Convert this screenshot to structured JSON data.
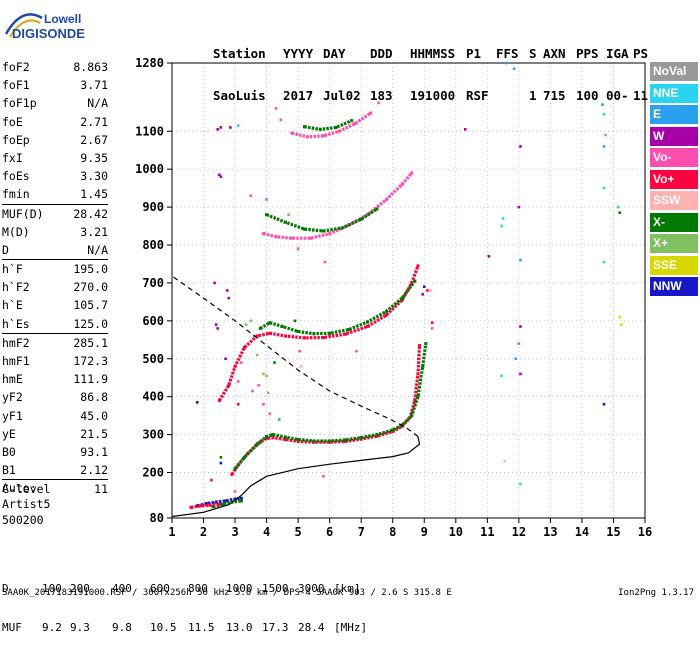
{
  "logo": {
    "line1": "Lowell",
    "line2": "DIGISONDE"
  },
  "header": {
    "labels": [
      "Station",
      "YYYY",
      "DAY",
      "DDD",
      "HHMMSS",
      "P1",
      "FFS",
      "S",
      "AXN",
      "PPS",
      "IGA",
      "PS"
    ],
    "values": [
      "SaoLuis",
      "2017",
      "Jul02",
      "183",
      "191000",
      "RSF",
      "",
      "1",
      "715",
      "100",
      "00-",
      "11"
    ]
  },
  "params": [
    {
      "name": "foF2",
      "value": "8.863",
      "sep": false
    },
    {
      "name": "foF1",
      "value": "3.71",
      "sep": false
    },
    {
      "name": "foF1p",
      "value": "N/A",
      "sep": false
    },
    {
      "name": "foE",
      "value": "2.71",
      "sep": false
    },
    {
      "name": "foEp",
      "value": "2.67",
      "sep": false
    },
    {
      "name": "fxI",
      "value": "9.35",
      "sep": false
    },
    {
      "name": "foEs",
      "value": "3.30",
      "sep": false
    },
    {
      "name": "fmin",
      "value": "1.45",
      "sep": false
    },
    {
      "name": "MUF(D)",
      "value": "28.42",
      "sep": true
    },
    {
      "name": "M(D)",
      "value": "3.21",
      "sep": false
    },
    {
      "name": "D",
      "value": "N/A",
      "sep": false
    },
    {
      "name": "h`F",
      "value": "195.0",
      "sep": true
    },
    {
      "name": "h`F2",
      "value": "270.0",
      "sep": false
    },
    {
      "name": "h`E",
      "value": "105.7",
      "sep": false
    },
    {
      "name": "h`Es",
      "value": "125.0",
      "sep": false
    },
    {
      "name": "hmF2",
      "value": "285.1",
      "sep": true
    },
    {
      "name": "hmF1",
      "value": "172.3",
      "sep": false
    },
    {
      "name": "hmE",
      "value": "111.9",
      "sep": false
    },
    {
      "name": "yF2",
      "value": "86.8",
      "sep": false
    },
    {
      "name": "yF1",
      "value": "45.0",
      "sep": false
    },
    {
      "name": "yE",
      "value": "21.5",
      "sep": false
    },
    {
      "name": "B0",
      "value": "93.1",
      "sep": false
    },
    {
      "name": "B1",
      "value": "2.12",
      "sep": false
    },
    {
      "name": "C-level",
      "value": "11",
      "sep": true
    }
  ],
  "auto": {
    "line1": "Auto:",
    "line2": "Artist5",
    "line3": "500200"
  },
  "legend": [
    {
      "label": "NoVal",
      "color": "#9a9a9a"
    },
    {
      "label": "NNE",
      "color": "#2ad4f0"
    },
    {
      "label": "E",
      "color": "#2aa0ee"
    },
    {
      "label": "W",
      "color": "#a800a8"
    },
    {
      "label": "Vo-",
      "color": "#ff4db0"
    },
    {
      "label": "Vo+",
      "color": "#ff0040"
    },
    {
      "label": "SSW",
      "color": "#ffb0b0"
    },
    {
      "label": "X-",
      "color": "#007a00"
    },
    {
      "label": "X+",
      "color": "#80c060"
    },
    {
      "label": "SSE",
      "color": "#d8d800"
    },
    {
      "label": "NNW",
      "color": "#1818c8"
    }
  ],
  "bottom": {
    "d_label": "D",
    "d_values": [
      "100",
      "200",
      "400",
      "600",
      "800",
      "1000",
      "1500",
      "3000"
    ],
    "d_unit": "[km]",
    "muf_label": "MUF",
    "muf_values": [
      "9.2",
      "9.3",
      "9.8",
      "10.5",
      "11.5",
      "13.0",
      "17.3",
      "28.4"
    ],
    "muf_unit": "[MHz]"
  },
  "footer": {
    "text": "SAA0K_2017183191000.RSF / 300fx256h 50 kHz 5.0 km / DPS-4 SAA0K 903 / 2.6 S 315.8 E",
    "version": "Ion2Png 1.3.17"
  },
  "chart_data": {
    "type": "scatter",
    "x_ticks": [
      1,
      2,
      3,
      4,
      5,
      6,
      7,
      8,
      9,
      10,
      11,
      12,
      13,
      14,
      15,
      16
    ],
    "y_ticks": [
      80,
      200,
      300,
      400,
      500,
      600,
      700,
      800,
      900,
      1000,
      1100,
      1280
    ],
    "xlim": [
      1,
      16
    ],
    "ylim": [
      80,
      1280
    ],
    "grid": "dotted",
    "profile_curve": [
      [
        1.0,
        84
      ],
      [
        2.0,
        95
      ],
      [
        2.8,
        115
      ],
      [
        3.2,
        140
      ],
      [
        3.5,
        165
      ],
      [
        4.0,
        190
      ],
      [
        5.0,
        210
      ],
      [
        6.0,
        222
      ],
      [
        7.0,
        232
      ],
      [
        8.0,
        242
      ],
      [
        8.5,
        252
      ],
      [
        8.85,
        275
      ],
      [
        8.8,
        295
      ],
      [
        8.4,
        320
      ],
      [
        7.8,
        345
      ],
      [
        7.0,
        375
      ],
      [
        6.0,
        415
      ],
      [
        5.0,
        470
      ],
      [
        4.0,
        535
      ],
      [
        3.0,
        600
      ],
      [
        2.0,
        660
      ],
      [
        1.0,
        718
      ]
    ],
    "profile_dashed_from_index": 12,
    "traces": [
      {
        "name": "o-trace-F",
        "color": "#ff0040",
        "points": [
          [
            2.9,
            195
          ],
          [
            3.1,
            220
          ],
          [
            3.4,
            250
          ],
          [
            3.8,
            280
          ],
          [
            4.0,
            290
          ],
          [
            4.2,
            292
          ],
          [
            4.6,
            287
          ],
          [
            5.0,
            282
          ],
          [
            5.5,
            280
          ],
          [
            6.0,
            280
          ],
          [
            6.5,
            282
          ],
          [
            7.0,
            288
          ],
          [
            7.5,
            296
          ],
          [
            8.0,
            308
          ],
          [
            8.3,
            322
          ],
          [
            8.55,
            345
          ],
          [
            8.7,
            390
          ],
          [
            8.8,
            460
          ],
          [
            8.85,
            535
          ]
        ]
      },
      {
        "name": "x-trace-F",
        "color": "#007a00",
        "points": [
          [
            3.0,
            210
          ],
          [
            3.3,
            240
          ],
          [
            3.7,
            275
          ],
          [
            4.0,
            295
          ],
          [
            4.2,
            300
          ],
          [
            4.6,
            293
          ],
          [
            5.0,
            287
          ],
          [
            5.5,
            283
          ],
          [
            6.0,
            283
          ],
          [
            6.5,
            286
          ],
          [
            7.0,
            292
          ],
          [
            7.5,
            300
          ],
          [
            8.0,
            312
          ],
          [
            8.3,
            325
          ],
          [
            8.6,
            350
          ],
          [
            8.8,
            400
          ],
          [
            8.95,
            480
          ],
          [
            9.05,
            540
          ]
        ]
      },
      {
        "name": "o-trace-2F",
        "color": "#ff0040",
        "points": [
          [
            2.5,
            390
          ],
          [
            2.8,
            430
          ],
          [
            3.0,
            480
          ],
          [
            3.3,
            530
          ],
          [
            3.7,
            560
          ],
          [
            4.1,
            567
          ],
          [
            4.6,
            560
          ],
          [
            5.2,
            555
          ],
          [
            5.8,
            556
          ],
          [
            6.5,
            565
          ],
          [
            7.2,
            585
          ],
          [
            7.8,
            615
          ],
          [
            8.3,
            655
          ],
          [
            8.6,
            700
          ],
          [
            8.8,
            745
          ]
        ]
      },
      {
        "name": "x-trace-2F",
        "color": "#007a00",
        "points": [
          [
            3.8,
            580
          ],
          [
            4.1,
            595
          ],
          [
            4.5,
            585
          ],
          [
            5.0,
            572
          ],
          [
            5.5,
            566
          ],
          [
            6.0,
            567
          ],
          [
            6.6,
            577
          ],
          [
            7.2,
            597
          ],
          [
            7.8,
            625
          ],
          [
            8.3,
            660
          ],
          [
            8.7,
            705
          ]
        ]
      },
      {
        "name": "o-trace-3F",
        "color": "#ff4db0",
        "points": [
          [
            3.9,
            830
          ],
          [
            4.3,
            822
          ],
          [
            4.8,
            818
          ],
          [
            5.4,
            818
          ],
          [
            6.0,
            830
          ],
          [
            6.6,
            852
          ],
          [
            7.2,
            880
          ],
          [
            7.8,
            920
          ],
          [
            8.3,
            960
          ],
          [
            8.6,
            990
          ]
        ]
      },
      {
        "name": "x-trace-3F",
        "color": "#007a00",
        "points": [
          [
            4.0,
            880
          ],
          [
            4.6,
            860
          ],
          [
            5.2,
            842
          ],
          [
            5.8,
            837
          ],
          [
            6.4,
            845
          ],
          [
            7.0,
            868
          ],
          [
            7.5,
            895
          ]
        ]
      },
      {
        "name": "o-trace-4F",
        "color": "#ff4db0",
        "points": [
          [
            4.8,
            1095
          ],
          [
            5.3,
            1085
          ],
          [
            5.8,
            1088
          ],
          [
            6.3,
            1100
          ],
          [
            6.8,
            1120
          ],
          [
            7.3,
            1148
          ]
        ]
      },
      {
        "name": "x-trace-4F",
        "color": "#007a00",
        "points": [
          [
            5.2,
            1112
          ],
          [
            5.7,
            1105
          ],
          [
            6.2,
            1110
          ],
          [
            6.7,
            1128
          ]
        ]
      },
      {
        "name": "E-trace",
        "color": "#1818c8",
        "points": [
          [
            1.8,
            112
          ],
          [
            2.1,
            118
          ],
          [
            2.4,
            122
          ],
          [
            2.7,
            125
          ],
          [
            3.0,
            130
          ],
          [
            3.2,
            132
          ]
        ]
      },
      {
        "name": "E-trace-x",
        "color": "#007a00",
        "points": [
          [
            2.3,
            110
          ],
          [
            2.6,
            116
          ],
          [
            2.9,
            122
          ],
          [
            3.2,
            125
          ]
        ]
      },
      {
        "name": "E-trace-o",
        "color": "#ff0040",
        "points": [
          [
            1.6,
            108
          ],
          [
            1.9,
            112
          ],
          [
            2.2,
            114
          ],
          [
            2.5,
            116
          ]
        ]
      }
    ],
    "scatter_points": [
      {
        "x": 11.6,
        "y": 1280,
        "color": "#2aa0ee"
      },
      {
        "x": 11.85,
        "y": 1265,
        "color": "#2aa0ee"
      },
      {
        "x": 14.65,
        "y": 1170,
        "color": "#2aa0ee"
      },
      {
        "x": 14.7,
        "y": 1145,
        "color": "#2ad4f0"
      },
      {
        "x": 14.75,
        "y": 1090,
        "color": "#80c060"
      },
      {
        "x": 14.7,
        "y": 1060,
        "color": "#2aa0ee"
      },
      {
        "x": 12.05,
        "y": 1060,
        "color": "#a800a8"
      },
      {
        "x": 10.3,
        "y": 1105,
        "color": "#a800a8"
      },
      {
        "x": 14.7,
        "y": 950,
        "color": "#2ad4f0"
      },
      {
        "x": 15.15,
        "y": 900,
        "color": "#2ad4f0"
      },
      {
        "x": 15.2,
        "y": 885,
        "color": "#007a00"
      },
      {
        "x": 11.5,
        "y": 870,
        "color": "#2ad4f0"
      },
      {
        "x": 11.45,
        "y": 850,
        "color": "#2ad4f0"
      },
      {
        "x": 12.0,
        "y": 900,
        "color": "#a800a8"
      },
      {
        "x": 12.05,
        "y": 760,
        "color": "#2aa0ee"
      },
      {
        "x": 11.05,
        "y": 770,
        "color": "#a800a8"
      },
      {
        "x": 14.7,
        "y": 755,
        "color": "#2ad4f0"
      },
      {
        "x": 15.2,
        "y": 610,
        "color": "#d8d800"
      },
      {
        "x": 15.25,
        "y": 590,
        "color": "#d8d800"
      },
      {
        "x": 12.05,
        "y": 585,
        "color": "#a800a8"
      },
      {
        "x": 12.0,
        "y": 540,
        "color": "#ff4db0"
      },
      {
        "x": 11.9,
        "y": 500,
        "color": "#2aa0ee"
      },
      {
        "x": 12.05,
        "y": 460,
        "color": "#a800a8"
      },
      {
        "x": 11.45,
        "y": 455,
        "color": "#2ad4f0"
      },
      {
        "x": 14.7,
        "y": 380,
        "color": "#1818c8"
      },
      {
        "x": 11.55,
        "y": 230,
        "color": "#ffb0b0"
      },
      {
        "x": 12.05,
        "y": 170,
        "color": "#2ad4f0"
      },
      {
        "x": 2.45,
        "y": 1105,
        "color": "#a800a8"
      },
      {
        "x": 2.55,
        "y": 1110,
        "color": "#a800a8"
      },
      {
        "x": 2.85,
        "y": 1110,
        "color": "#a800a8"
      },
      {
        "x": 2.5,
        "y": 985,
        "color": "#a800a8"
      },
      {
        "x": 2.55,
        "y": 980,
        "color": "#a800a8"
      },
      {
        "x": 3.1,
        "y": 1115,
        "color": "#2ad4f0"
      },
      {
        "x": 2.75,
        "y": 680,
        "color": "#a800a8"
      },
      {
        "x": 2.8,
        "y": 660,
        "color": "#a800a8"
      },
      {
        "x": 2.4,
        "y": 590,
        "color": "#a800a8"
      },
      {
        "x": 2.45,
        "y": 580,
        "color": "#a800a8"
      },
      {
        "x": 2.7,
        "y": 500,
        "color": "#a800a8"
      },
      {
        "x": 1.8,
        "y": 385,
        "color": "#1818c8"
      },
      {
        "x": 3.1,
        "y": 380,
        "color": "#ff0040"
      },
      {
        "x": 3.75,
        "y": 430,
        "color": "#ff4db0"
      },
      {
        "x": 4.0,
        "y": 455,
        "color": "#80c060"
      },
      {
        "x": 4.25,
        "y": 490,
        "color": "#007a00"
      },
      {
        "x": 5.05,
        "y": 520,
        "color": "#ff4db0"
      },
      {
        "x": 5.1,
        "y": 480,
        "color": "#ffb0b0"
      },
      {
        "x": 5.8,
        "y": 190,
        "color": "#ff4db0"
      },
      {
        "x": 6.85,
        "y": 520,
        "color": "#ff4db0"
      },
      {
        "x": 8.95,
        "y": 670,
        "color": "#a800a8"
      },
      {
        "x": 9.1,
        "y": 680,
        "color": "#ff0040"
      },
      {
        "x": 9.0,
        "y": 690,
        "color": "#1818c8"
      },
      {
        "x": 9.2,
        "y": 680,
        "color": "#ffb0b0"
      },
      {
        "x": 9.25,
        "y": 595,
        "color": "#ff0040"
      },
      {
        "x": 9.25,
        "y": 580,
        "color": "#ff4db0"
      },
      {
        "x": 4.0,
        "y": 920,
        "color": "#ff4db0"
      },
      {
        "x": 5.0,
        "y": 790,
        "color": "#ff4db0"
      },
      {
        "x": 5.85,
        "y": 755,
        "color": "#ff4db0"
      },
      {
        "x": 4.9,
        "y": 600,
        "color": "#007a00"
      },
      {
        "x": 4.1,
        "y": 355,
        "color": "#ff4db0"
      },
      {
        "x": 2.55,
        "y": 240,
        "color": "#007a00"
      },
      {
        "x": 2.55,
        "y": 225,
        "color": "#1818c8"
      },
      {
        "x": 3.0,
        "y": 150,
        "color": "#ff4db0"
      },
      {
        "x": 4.4,
        "y": 340,
        "color": "#2aa0ee"
      },
      {
        "x": 2.35,
        "y": 700,
        "color": "#a800a8"
      },
      {
        "x": 3.5,
        "y": 930,
        "color": "#ff4db0"
      },
      {
        "x": 2.25,
        "y": 180,
        "color": "#ff0040"
      },
      {
        "x": 3.35,
        "y": 590,
        "color": "#80c060"
      },
      {
        "x": 3.5,
        "y": 600,
        "color": "#80c060"
      },
      {
        "x": 3.6,
        "y": 560,
        "color": "#80c060"
      },
      {
        "x": 3.7,
        "y": 510,
        "color": "#80c060"
      },
      {
        "x": 3.9,
        "y": 460,
        "color": "#80c060"
      },
      {
        "x": 4.05,
        "y": 410,
        "color": "#80c060"
      },
      {
        "x": 3.2,
        "y": 490,
        "color": "#ff4db0"
      },
      {
        "x": 3.1,
        "y": 440,
        "color": "#ff4db0"
      },
      {
        "x": 3.9,
        "y": 380,
        "color": "#ff4db0"
      },
      {
        "x": 4.3,
        "y": 1160,
        "color": "#ff4db0"
      },
      {
        "x": 4.45,
        "y": 1130,
        "color": "#ff4db0"
      },
      {
        "x": 7.55,
        "y": 1175,
        "color": "#ff4db0"
      },
      {
        "x": 4.7,
        "y": 880,
        "color": "#80c060"
      },
      {
        "x": 3.55,
        "y": 415,
        "color": "#ff4db0"
      }
    ]
  }
}
